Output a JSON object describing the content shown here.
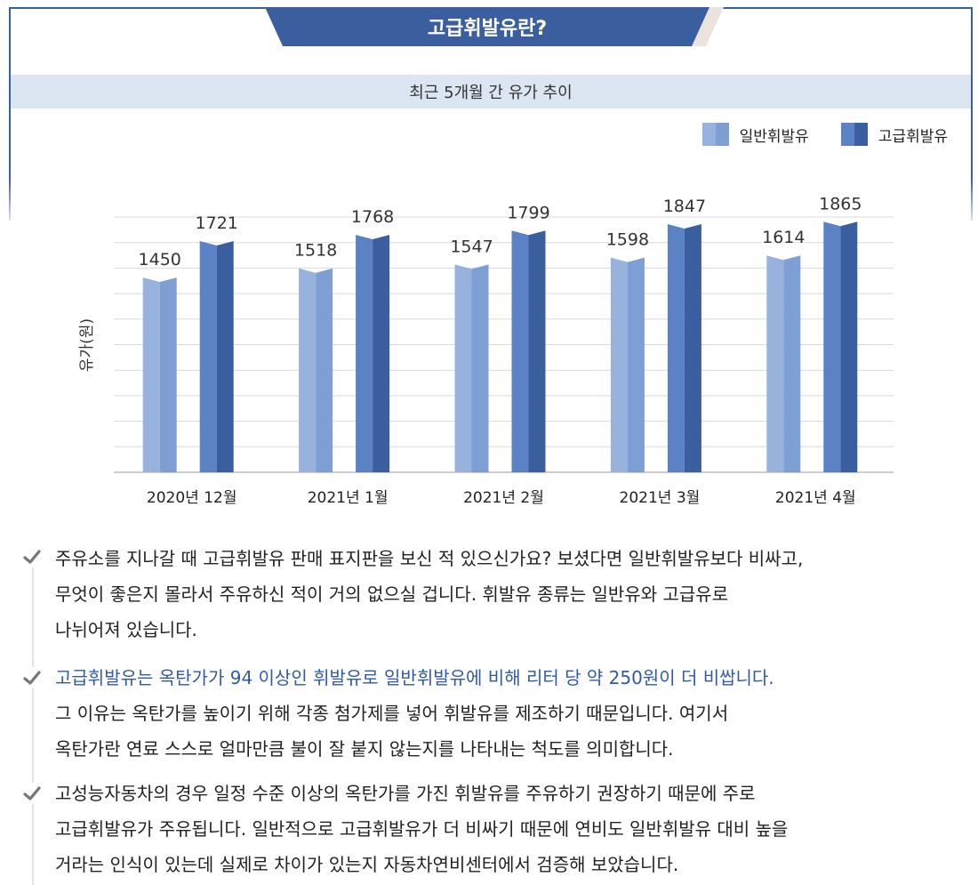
{
  "banner": {
    "title": "고급휘발유란?"
  },
  "chart_data": {
    "type": "bar",
    "title": "최근 5개월 간 유가 추이",
    "ylabel": "유가(원)",
    "xlabel": "",
    "ylim": [
      0,
      1900
    ],
    "grid": true,
    "legend_position": "top-right",
    "categories": [
      "2020년 12월",
      "2021년 1월",
      "2021년 2월",
      "2021년 3월",
      "2021년 4월"
    ],
    "series": [
      {
        "name": "일반휘발유",
        "values": [
          1450,
          1518,
          1547,
          1598,
          1614
        ],
        "color": "#97b2dc",
        "shade": "#7f9ed3"
      },
      {
        "name": "고급휘발유",
        "values": [
          1721,
          1768,
          1799,
          1847,
          1865
        ],
        "color": "#5a82c4",
        "shade": "#3b5e9e"
      }
    ]
  },
  "paragraphs": [
    {
      "lines": [
        "주유소를 지나갈 때 고급휘발유 판매 표지판을 보신 적 있으신가요? 보셨다면 일반휘발유보다 비싸고,",
        "무엇이 좋은지 몰라서 주유하신 적이 거의 없으실 겁니다. 휘발유 종류는 일반유와 고급유로",
        "나뉘어져 있습니다."
      ]
    },
    {
      "highlight": "고급휘발유는 옥탄가가 94 이상인 휘발유로 일반휘발유에 비해 리터 당 약 250원이 더 비쌉니다.",
      "lines": [
        "그 이유는 옥탄가를 높이기 위해 각종 첨가제를 넣어 휘발유를 제조하기 때문입니다. 여기서",
        "옥탄가란 연료 스스로 얼마만큼 불이 잘 붙지 않는지를 나타내는 척도를 의미합니다."
      ]
    },
    {
      "lines": [
        "고성능자동차의 경우 일정 수준 이상의 옥탄가를 가진 휘발유를 주유하기 권장하기 때문에 주로",
        "고급휘발유가 주유됩니다. 일반적으로 고급휘발유가 더 비싸기 때문에 연비도 일반휘발유 대비 높을",
        "거라는 인식이 있는데 실제로 차이가 있는지 자동차연비센터에서 검증해 보았습니다."
      ]
    }
  ],
  "icons": {
    "bullet": "check-icon"
  }
}
